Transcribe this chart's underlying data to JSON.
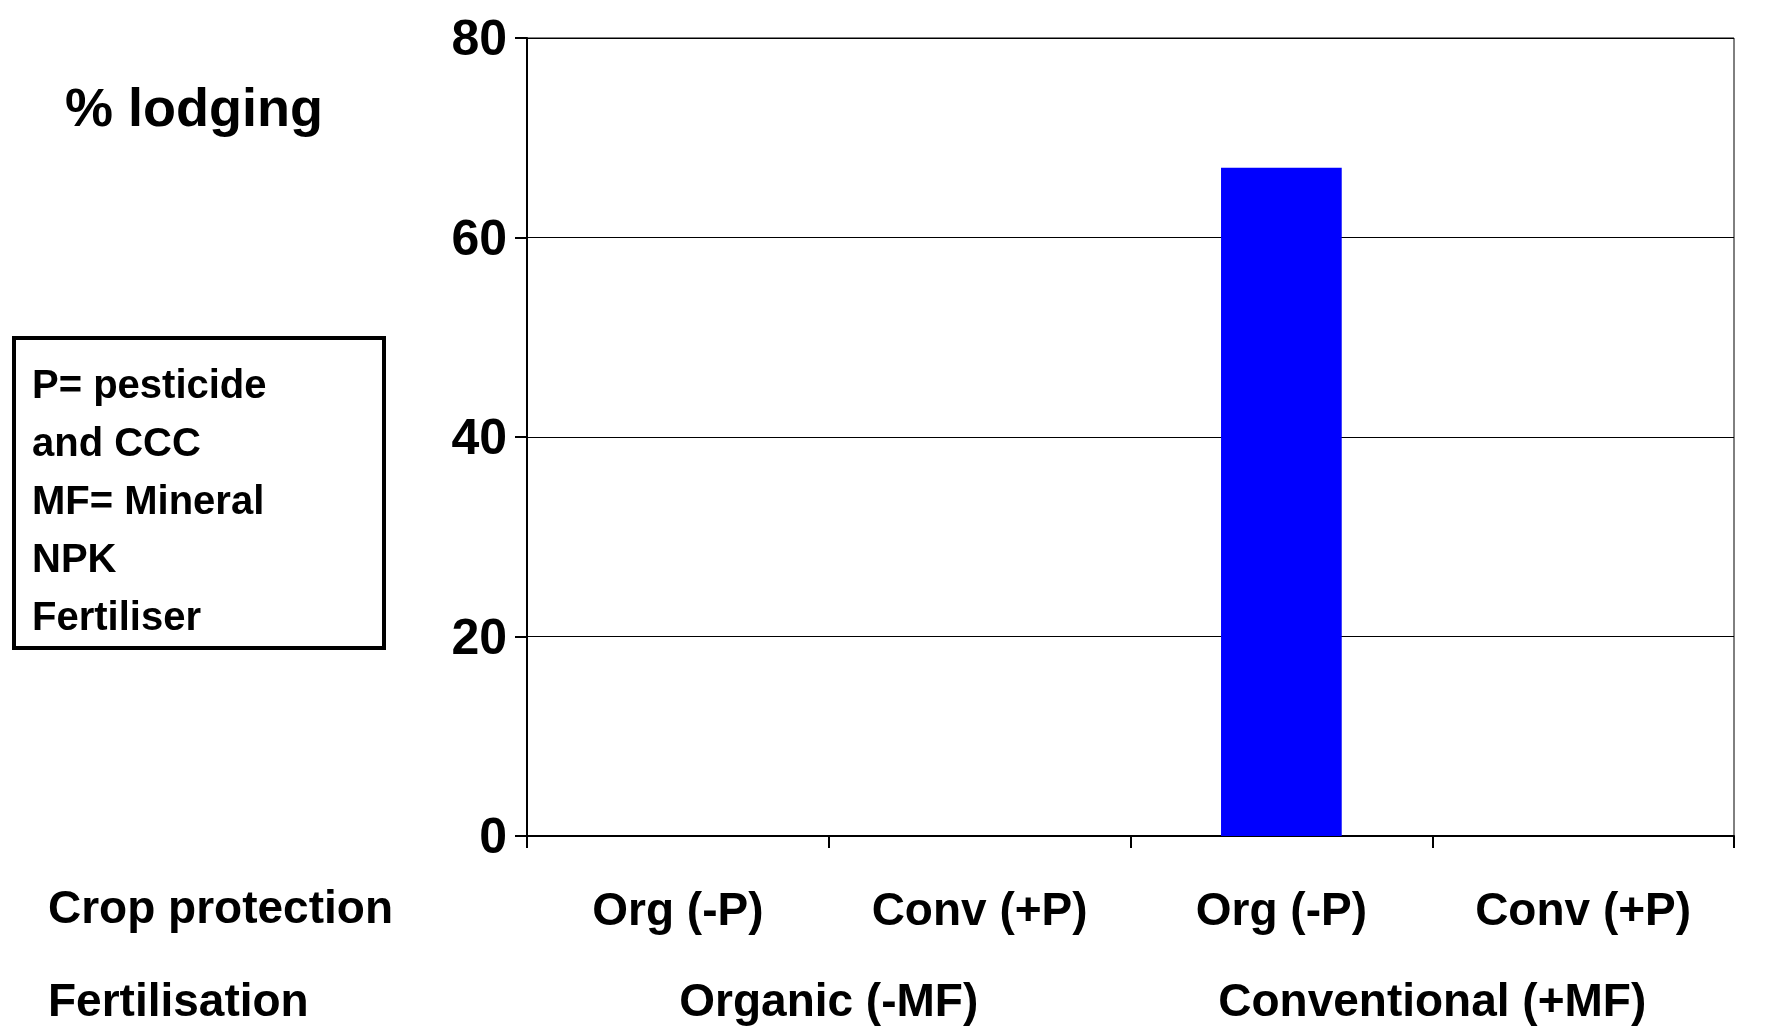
{
  "chart_data": {
    "type": "bar",
    "ylabel": "% lodging",
    "categories": [
      "Org (-P)",
      "Conv (+P)",
      "Org (-P)",
      "Conv (+P)"
    ],
    "values": [
      0,
      0,
      67,
      0
    ],
    "colors": [
      "#006400",
      "#0000c0",
      "#0000ff",
      "#c00000"
    ],
    "ylim": [
      0,
      80
    ],
    "yticks": [
      0,
      20,
      40,
      60,
      80
    ],
    "grid": "y",
    "annotations": [
      "Crop protection",
      "Fertilisation",
      "Organic (-MF)",
      "Conventional (+MF)",
      "P= pesticide\nand CCC\nMF= Mineral\nNPK\nFertiliser"
    ]
  }
}
